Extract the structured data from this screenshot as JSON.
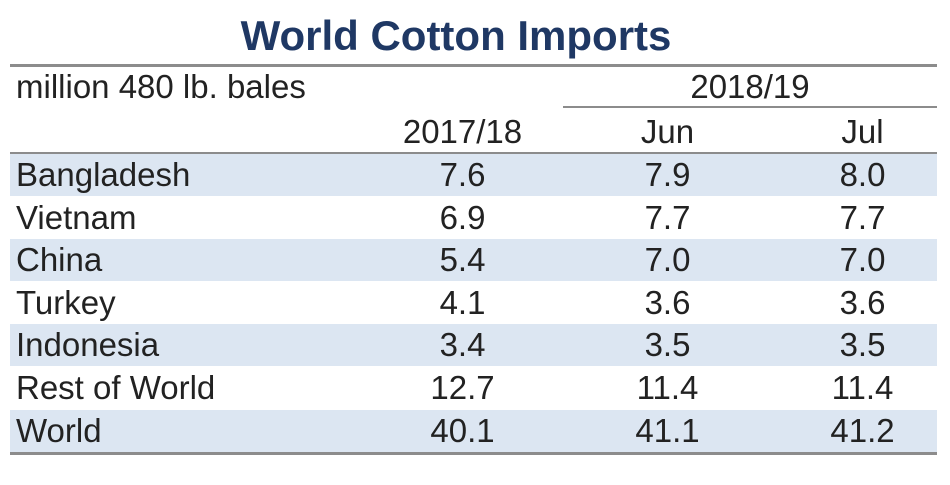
{
  "chart_data": {
    "type": "table",
    "title": "World Cotton Imports",
    "unit": "million 480 lb. bales",
    "column_group": "2018/19",
    "columns": [
      "2017/18",
      "Jun",
      "Jul"
    ],
    "rows": [
      {
        "name": "Bangladesh",
        "values": [
          "7.6",
          "7.9",
          "8.0"
        ]
      },
      {
        "name": "Vietnam",
        "values": [
          "6.9",
          "7.7",
          "7.7"
        ]
      },
      {
        "name": "China",
        "values": [
          "5.4",
          "7.0",
          "7.0"
        ]
      },
      {
        "name": "Turkey",
        "values": [
          "4.1",
          "3.6",
          "3.6"
        ]
      },
      {
        "name": "Indonesia",
        "values": [
          "3.4",
          "3.5",
          "3.5"
        ]
      },
      {
        "name": "Rest of World",
        "values": [
          "12.7",
          "11.4",
          "11.4"
        ]
      },
      {
        "name": "World",
        "values": [
          "40.1",
          "41.1",
          "41.2"
        ]
      }
    ]
  },
  "colors": {
    "title": "#1f3864",
    "row_shade": "#dce6f2",
    "rule": "#8c8c8c"
  }
}
